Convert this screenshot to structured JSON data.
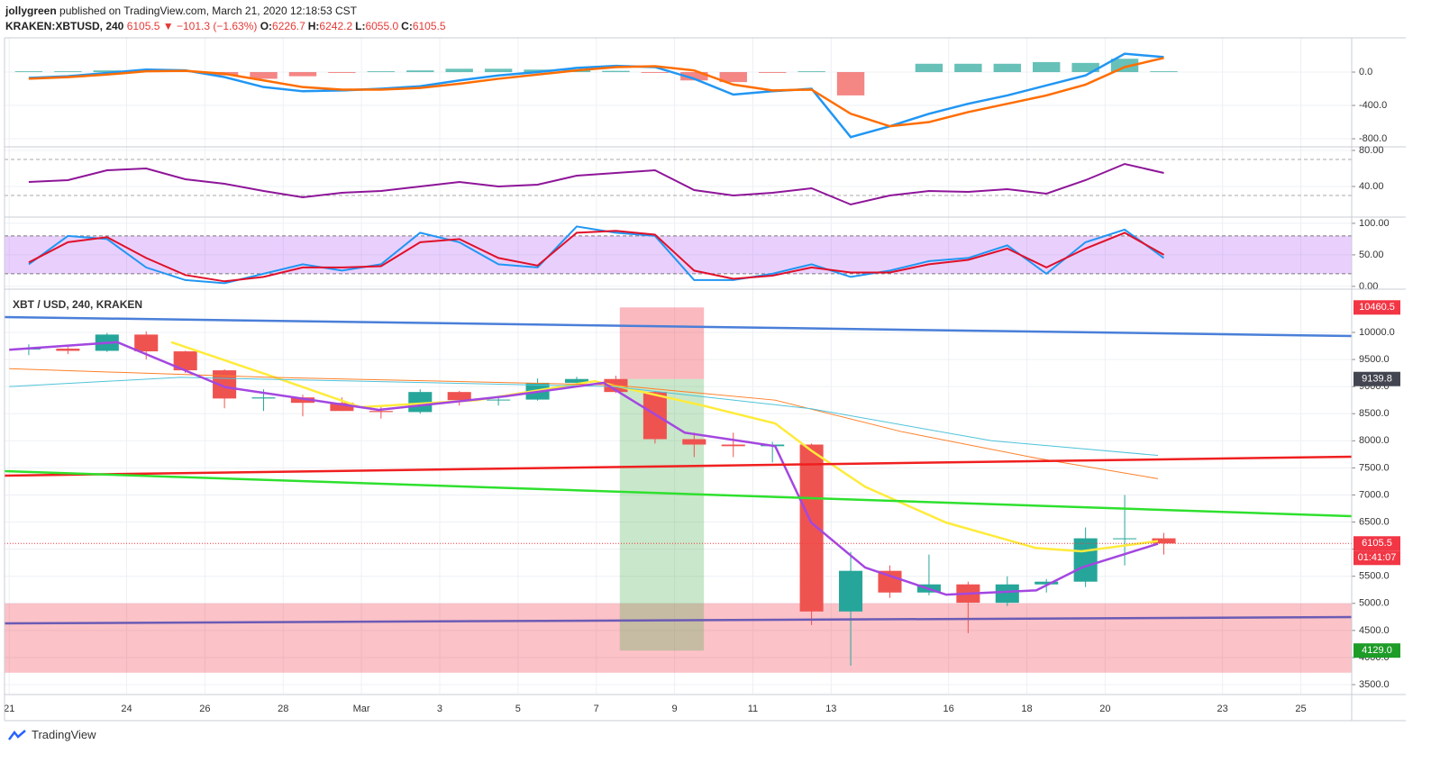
{
  "header": {
    "author": "jollygreen",
    "published": "published on TradingView.com, March 21, 2020 12:18:53 CST",
    "symbol": "KRAKEN:XBTUSD, 240",
    "last": "6105.5",
    "change": "▼ −101.3 (−1.63%)",
    "ohlc": [
      {
        "label": "O:",
        "value": "6226.7"
      },
      {
        "label": "H:",
        "value": "6242.2"
      },
      {
        "label": "L:",
        "value": "6055.0"
      },
      {
        "label": "C:",
        "value": "6105.5"
      }
    ],
    "brand": "TradingView"
  },
  "chart_data": [
    {
      "type": "candlestick",
      "title": "XBT / USD, 240, KRAKEN",
      "xlim": [
        -0.12,
        34.3
      ],
      "xticks": [
        {
          "value": 0,
          "label": "21"
        },
        {
          "value": 3,
          "label": "24"
        },
        {
          "value": 5,
          "label": "26"
        },
        {
          "value": 7,
          "label": "28"
        },
        {
          "value": 9,
          "label": "Mar"
        },
        {
          "value": 11,
          "label": "3"
        },
        {
          "value": 13,
          "label": "5"
        },
        {
          "value": 15,
          "label": "7"
        },
        {
          "value": 17,
          "label": "9"
        },
        {
          "value": 19,
          "label": "11"
        },
        {
          "value": 21,
          "label": "13"
        },
        {
          "value": 24,
          "label": "16"
        },
        {
          "value": 26,
          "label": "18"
        },
        {
          "value": 28,
          "label": "20"
        },
        {
          "value": 31,
          "label": "23"
        },
        {
          "value": 33,
          "label": "25"
        }
      ],
      "ylim": [
        3334,
        10781
      ],
      "yticks": [
        {
          "value": 3500,
          "label": "3500.0"
        },
        {
          "value": 4000,
          "label": "4000.0"
        },
        {
          "value": 4500,
          "label": "4500.0"
        },
        {
          "value": 5000,
          "label": "5000.0"
        },
        {
          "value": 5500,
          "label": "5500.0"
        },
        {
          "value": 6000,
          "label": "6000.0"
        },
        {
          "value": 6500,
          "label": "6500.0"
        },
        {
          "value": 7000,
          "label": "7000.0"
        },
        {
          "value": 7500,
          "label": "7500.0"
        },
        {
          "value": 8000,
          "label": "8000.0"
        },
        {
          "value": 8500,
          "label": "8500.0"
        },
        {
          "value": 9000,
          "label": "9000.0"
        },
        {
          "value": 9500,
          "label": "9500.0"
        },
        {
          "value": 10000,
          "label": "10000.0"
        }
      ],
      "grid": true,
      "up_color": "#26a69a",
      "down_color": "#ef5350",
      "x": [
        0.5,
        1.5,
        2.5,
        3.5,
        4.5,
        5.5,
        6.5,
        7.5,
        8.5,
        9.5,
        10.5,
        11.5,
        12.5,
        13.5,
        14.5,
        15.5,
        16.5,
        17.5,
        18.5,
        19.5,
        20.5,
        21.5,
        22.5,
        23.5,
        24.5,
        25.5,
        26.5,
        27.5,
        28.5,
        29.5
      ],
      "open": [
        9690,
        9700,
        9660,
        9960,
        9650,
        9300,
        8780,
        8800,
        8700,
        8550,
        8530,
        8900,
        8750,
        8760,
        9070,
        9140,
        8900,
        8030,
        7930,
        7900,
        7930,
        4850,
        5600,
        5200,
        5350,
        5010,
        5350,
        5400,
        6200,
        6200
      ],
      "high": [
        9780,
        9730,
        9990,
        10020,
        9660,
        9320,
        8950,
        8850,
        8800,
        8650,
        8950,
        8920,
        8820,
        9150,
        9180,
        9200,
        8920,
        8150,
        8150,
        7980,
        7950,
        5950,
        5700,
        5900,
        5400,
        5500,
        5450,
        6400,
        7000,
        6300
      ],
      "low": [
        9580,
        9600,
        9640,
        9500,
        9250,
        8600,
        8550,
        8450,
        8550,
        8410,
        8500,
        8650,
        8650,
        8740,
        9000,
        8880,
        7950,
        7700,
        7700,
        7600,
        4600,
        3850,
        5100,
        5150,
        4450,
        4950,
        5200,
        5300,
        5700,
        5900
      ],
      "close": [
        9700,
        9660,
        9960,
        9650,
        9300,
        8780,
        8800,
        8700,
        8550,
        8530,
        8900,
        8750,
        8760,
        9070,
        9140,
        8900,
        8030,
        7930,
        7900,
        7930,
        4850,
        5600,
        5200,
        5350,
        5010,
        5350,
        5400,
        6200,
        6200,
        6105.5
      ],
      "series": [
        {
          "color": "#ffeb3b",
          "width": 2.5,
          "x": [
            4.14,
            6.67,
            8.98,
            11.97,
            14.96,
            17.72,
            19.57,
            20.49,
            21.87,
            23.94,
            26.24,
            27.4,
            29.35
          ],
          "values": [
            9820,
            9200,
            8620,
            8750,
            9100,
            8650,
            8320,
            7820,
            7150,
            6490,
            6020,
            5960,
            6150
          ]
        },
        {
          "color": "#ff7f27",
          "width": 1,
          "x": [
            0,
            6.67,
            15.42,
            19.57,
            22.79,
            26.24,
            29.35
          ],
          "values": [
            9330,
            9170,
            9030,
            8750,
            8170,
            7680,
            7300
          ]
        },
        {
          "color": "#4fc3d9",
          "width": 1,
          "x": [
            0,
            4.37,
            15.42,
            20.49,
            25.1,
            29.35
          ],
          "values": [
            9000,
            9170,
            9000,
            8590,
            8000,
            7730
          ]
        },
        {
          "color": "#a347e0",
          "width": 2.5,
          "x": [
            0,
            2.76,
            5.52,
            9.44,
            12.66,
            15.19,
            17.26,
            19.57,
            20.49,
            21.87,
            23.94,
            26.24,
            27.4,
            29.35
          ],
          "values": [
            9680,
            9820,
            8990,
            8570,
            8820,
            9070,
            8150,
            7900,
            6490,
            5660,
            5160,
            5240,
            5660,
            6100
          ]
        },
        {
          "color": "#4a7fd9",
          "width": 2.5,
          "x": [
            -0.12,
            34.3
          ],
          "values": [
            10283,
            9933
          ]
        },
        {
          "color": "#f01f1f",
          "width": 2.5,
          "x": [
            -0.12,
            34.3
          ],
          "values": [
            7357,
            7706
          ]
        },
        {
          "color": "#2ee02e",
          "width": 2.5,
          "x": [
            -0.12,
            34.3
          ],
          "values": [
            7440,
            6608
          ]
        },
        {
          "color": "#6b5bb5",
          "width": 2.5,
          "x": [
            -0.12,
            34.3
          ],
          "values": [
            4630,
            4746
          ]
        }
      ],
      "zones": [
        {
          "range": [
            3720,
            5000
          ],
          "color": "rgba(242,54,69,0.3)"
        }
      ],
      "position": {
        "x": [
          15.6,
          17.75
        ],
        "loss_color": "rgba(242,54,69,0.35)",
        "profit_color": "rgba(76,175,80,0.3)"
      },
      "price_labels": [
        {
          "value": 10460.5,
          "color": "#f23645"
        },
        {
          "value": 9139.8,
          "color": "#434651"
        },
        {
          "value": 6105.5,
          "color": "#f23645",
          "line": true,
          "countdown": "01:41:07"
        },
        {
          "value": 4129,
          "label": "4129.0",
          "color": "#1e9c28"
        }
      ]
    },
    {
      "type": "line",
      "ylim": [
        -886,
        411
      ],
      "yticks": [
        {
          "value": -800,
          "label": "-800.0"
        },
        {
          "value": -400,
          "label": "-400.0"
        },
        {
          "value": 0,
          "label": "0.0"
        }
      ],
      "x": [
        0.5,
        1.5,
        2.5,
        3.5,
        4.5,
        5.5,
        6.5,
        7.5,
        8.5,
        9.5,
        10.5,
        11.5,
        12.5,
        13.5,
        14.5,
        15.5,
        16.5,
        17.5,
        18.5,
        19.5,
        20.5,
        21.5,
        22.5,
        23.5,
        24.5,
        25.5,
        26.5,
        27.5,
        28.5,
        29.5
      ],
      "series": [
        {
          "kind": "bar",
          "color": "#26a69a",
          "negative_color": "#ef5350",
          "values": [
            10,
            10,
            20,
            20,
            5,
            -40,
            -80,
            -50,
            -10,
            10,
            20,
            40,
            40,
            30,
            30,
            15,
            -10,
            -100,
            -120,
            -10,
            10,
            -280,
            0,
            100,
            100,
            100,
            120,
            110,
            160,
            10
          ]
        },
        {
          "color": "#2196f3",
          "width": 2.5,
          "values": [
            -70,
            -50,
            -10,
            30,
            20,
            -60,
            -180,
            -230,
            -220,
            -200,
            -170,
            -100,
            -40,
            0,
            50,
            75,
            60,
            -80,
            -270,
            -230,
            -200,
            -780,
            -650,
            -500,
            -380,
            -280,
            -160,
            -40,
            220,
            180
          ]
        },
        {
          "color": "#ff6d00",
          "width": 2.5,
          "values": [
            -80,
            -60,
            -30,
            10,
            15,
            -20,
            -100,
            -180,
            -210,
            -210,
            -190,
            -140,
            -80,
            -30,
            20,
            60,
            70,
            20,
            -150,
            -220,
            -210,
            -500,
            -650,
            -600,
            -480,
            -380,
            -280,
            -150,
            60,
            170
          ]
        }
      ]
    },
    {
      "type": "line",
      "ylim": [
        7,
        83
      ],
      "yticks": [
        {
          "value": 40,
          "label": "40.00"
        },
        {
          "value": 80,
          "label": "80.00"
        }
      ],
      "levels": [
        30,
        70
      ],
      "x": [
        0.5,
        1.5,
        2.5,
        3.5,
        4.5,
        5.5,
        6.5,
        7.5,
        8.5,
        9.5,
        10.5,
        11.5,
        12.5,
        13.5,
        14.5,
        15.5,
        16.5,
        17.5,
        18.5,
        19.5,
        20.5,
        21.5,
        22.5,
        23.5,
        24.5,
        25.5,
        26.5,
        27.5,
        28.5,
        29.5
      ],
      "series": [
        {
          "color": "#8e1599",
          "width": 2,
          "values": [
            45,
            47,
            58,
            60,
            48,
            43,
            35,
            28,
            33,
            35,
            40,
            45,
            40,
            42,
            52,
            55,
            58,
            36,
            30,
            33,
            38,
            20,
            30,
            35,
            34,
            37,
            32,
            47,
            65,
            55
          ]
        }
      ]
    },
    {
      "type": "line",
      "ylim": [
        -3,
        107
      ],
      "yticks": [
        {
          "value": 0,
          "label": "0.00"
        },
        {
          "value": 50,
          "label": "50.00"
        },
        {
          "value": 100,
          "label": "100.00"
        }
      ],
      "band": [
        20,
        80
      ],
      "band_color": "rgba(156,39,240,0.22)",
      "x": [
        0.5,
        1.5,
        2.5,
        3.5,
        4.5,
        5.5,
        6.5,
        7.5,
        8.5,
        9.5,
        10.5,
        11.5,
        12.5,
        13.5,
        14.5,
        15.5,
        16.5,
        17.5,
        18.5,
        19.5,
        20.5,
        21.5,
        22.5,
        23.5,
        24.5,
        25.5,
        26.5,
        27.5,
        28.5,
        29.5
      ],
      "series": [
        {
          "color": "#2196f3",
          "width": 2,
          "values": [
            35,
            80,
            75,
            30,
            10,
            5,
            20,
            35,
            25,
            35,
            85,
            70,
            35,
            30,
            95,
            85,
            80,
            10,
            10,
            20,
            35,
            15,
            25,
            40,
            45,
            65,
            20,
            70,
            90,
            45
          ]
        },
        {
          "color": "#e0102a",
          "width": 2,
          "values": [
            38,
            70,
            78,
            45,
            18,
            8,
            15,
            30,
            30,
            32,
            70,
            75,
            45,
            33,
            85,
            88,
            82,
            25,
            12,
            17,
            30,
            22,
            22,
            35,
            42,
            60,
            30,
            60,
            85,
            50
          ]
        }
      ]
    }
  ]
}
